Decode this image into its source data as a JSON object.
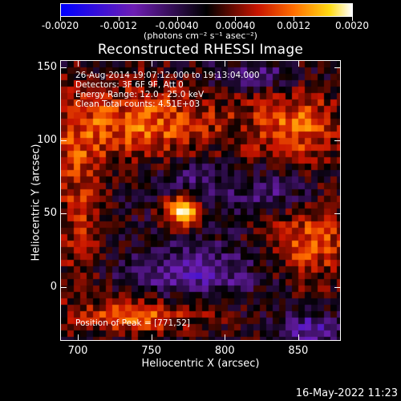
{
  "chart_data": {
    "type": "heatmap",
    "title": "Reconstructed RHESSI Image",
    "xlabel": "Heliocentric X (arcsec)",
    "ylabel": "Heliocentric Y (arcsec)",
    "xlim": [
      688,
      879
    ],
    "ylim": [
      -37,
      155
    ],
    "x_ticks": [
      {
        "value": 700,
        "label": "700"
      },
      {
        "value": 750,
        "label": "750"
      },
      {
        "value": 800,
        "label": "800"
      },
      {
        "value": 850,
        "label": "850"
      }
    ],
    "y_ticks": [
      {
        "value": 0,
        "label": "0"
      },
      {
        "value": 50,
        "label": "50"
      },
      {
        "value": 100,
        "label": "100"
      },
      {
        "value": 150,
        "label": "150"
      }
    ],
    "colorbar": {
      "min": -0.002,
      "max": 0.002,
      "ticks": [
        "-0.0020",
        "-0.0012",
        "-0.00040",
        "0.00040",
        "0.0012",
        "0.0020"
      ],
      "unit": "(photons cm⁻² s⁻¹ asec⁻²)",
      "colormap": "blue-purple-black-red-yellow-white"
    },
    "peak": [
      771,
      52
    ],
    "annotations": [
      "26-Aug-2014 19:07:12.000 to 19:13:04.000",
      "Detectors: 3F 6F 9F, Att 0",
      "Energy Range: 12.0 - 25.0 keV",
      "Clean     Total counts: 4.51E+03"
    ],
    "peak_label": "Position of Peak = [771,52]"
  },
  "footer": {
    "timestamp": "16-May-2022 11:23"
  }
}
